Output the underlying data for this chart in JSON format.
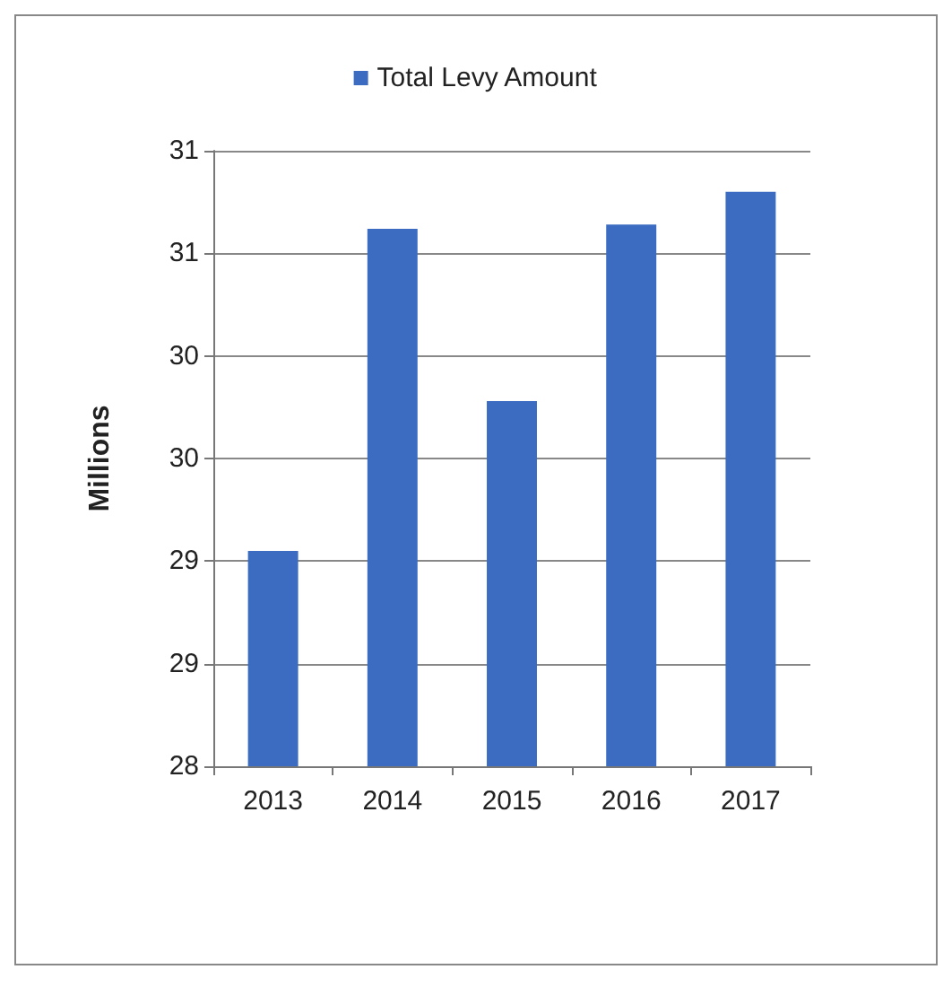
{
  "chart_data": {
    "type": "bar",
    "ylabel": "Millions",
    "categories": [
      "2013",
      "2014",
      "2015",
      "2016",
      "2017"
    ],
    "series": [
      {
        "name": "Total Levy Amount",
        "color": "#3b6cc2",
        "values": [
          29.05,
          30.62,
          29.78,
          30.64,
          30.8
        ]
      }
    ],
    "ylim": [
      28,
      31
    ],
    "yticks": [
      28,
      {
        "value": 28.5,
        "label": "29"
      },
      29,
      {
        "value": 29.5,
        "label": "30"
      },
      30,
      {
        "value": 30.5,
        "label": "31"
      },
      31
    ],
    "grid": "y",
    "legend": "top"
  }
}
